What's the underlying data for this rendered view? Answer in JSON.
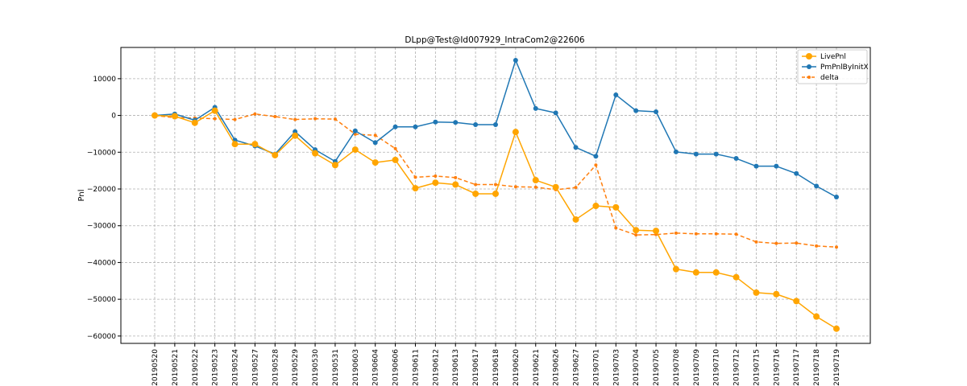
{
  "chart_data": {
    "type": "line",
    "title": "DLpp@Test@Id007929_IntraCom2@22606",
    "xlabel": "",
    "ylabel": "Pnl",
    "categories": [
      "20190520",
      "20190521",
      "20190522",
      "20190523",
      "20190524",
      "20190527",
      "20190528",
      "20190529",
      "20190530",
      "20190531",
      "20190603",
      "20190604",
      "20190606",
      "20190611",
      "20190612",
      "20190613",
      "20190617",
      "20190618",
      "20190620",
      "20190621",
      "20190626",
      "20190627",
      "20190701",
      "20190703",
      "20190704",
      "20190705",
      "20190708",
      "20190709",
      "20190710",
      "20190712",
      "20190715",
      "20190716",
      "20190717",
      "20190718",
      "20190719"
    ],
    "ylim": [
      -62000,
      18500
    ],
    "yticks": [
      10000,
      0,
      -10000,
      -20000,
      -30000,
      -40000,
      -50000,
      -60000
    ],
    "ytick_labels": [
      "10000",
      "0",
      "−10000",
      "−20000",
      "−30000",
      "−40000",
      "−50000",
      "−60000"
    ],
    "grid": true,
    "legend_position": "top-right",
    "series": [
      {
        "name": "LivePnl",
        "color": "#ffa500",
        "style": "solid",
        "marker": "circle-large",
        "values": [
          0,
          -200,
          -2000,
          1300,
          -7800,
          -7800,
          -10800,
          -5500,
          -10300,
          -13500,
          -9300,
          -12800,
          -12100,
          -19800,
          -18300,
          -18800,
          -21300,
          -21300,
          -4500,
          -17600,
          -19500,
          -28300,
          -24600,
          -25000,
          -31200,
          -31400,
          -41800,
          -42700,
          -42700,
          -44000,
          -48200,
          -48600,
          -50500,
          -54700,
          -58000
        ]
      },
      {
        "name": "PmPnlByInitX",
        "color": "#1f77b4",
        "style": "solid",
        "marker": "circle",
        "values": [
          0,
          400,
          -1300,
          2200,
          -6700,
          -8300,
          -10500,
          -4400,
          -9300,
          -12500,
          -4200,
          -7400,
          -3100,
          -3100,
          -1800,
          -1900,
          -2500,
          -2500,
          15000,
          1900,
          700,
          -8700,
          -11100,
          5600,
          1300,
          1000,
          -9900,
          -10500,
          -10500,
          -11700,
          -13800,
          -13800,
          -15800,
          -19200,
          -22200
        ]
      },
      {
        "name": "delta",
        "color": "#ff7f0e",
        "style": "dashed",
        "marker": "circle-small",
        "values": [
          0,
          -600,
          -700,
          -900,
          -1100,
          400,
          -300,
          -1100,
          -900,
          -1000,
          -5100,
          -5400,
          -9000,
          -16800,
          -16500,
          -16900,
          -18800,
          -18800,
          -19400,
          -19500,
          -20200,
          -19600,
          -13500,
          -30600,
          -32500,
          -32400,
          -32000,
          -32200,
          -32200,
          -32300,
          -34400,
          -34800,
          -34700,
          -35500,
          -35800
        ]
      }
    ]
  }
}
